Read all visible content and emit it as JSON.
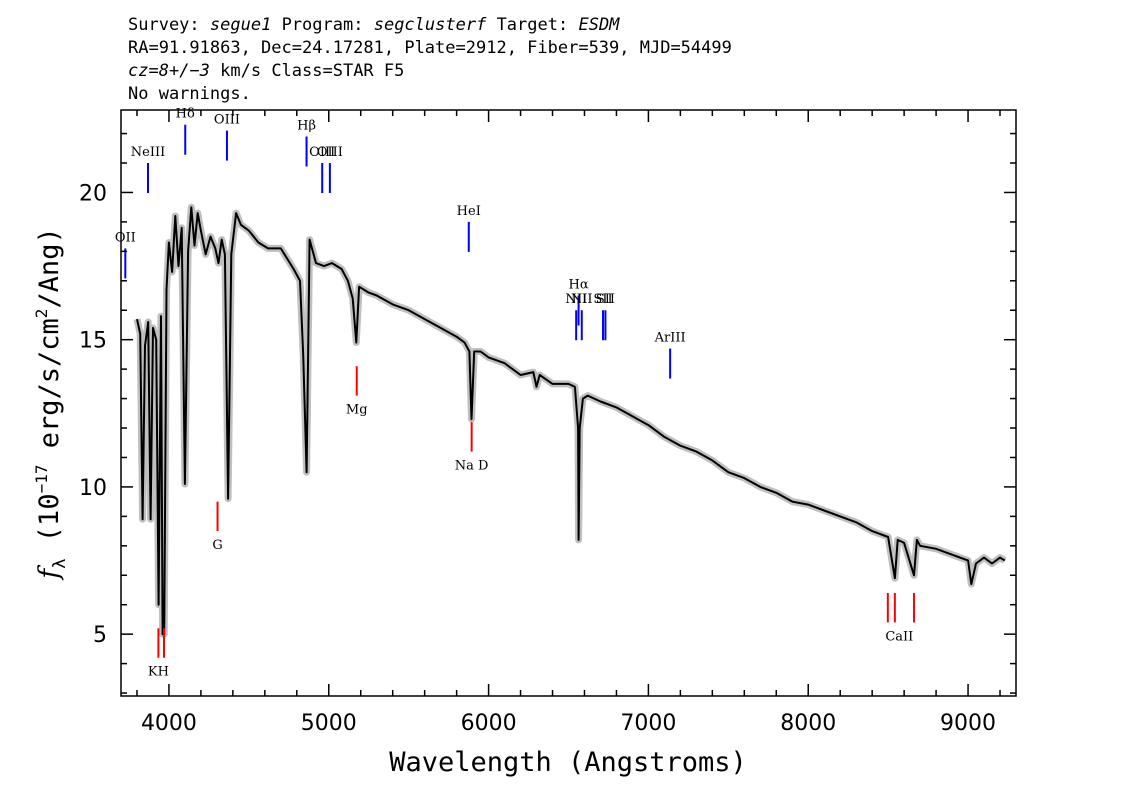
{
  "header": {
    "survey_label": "Survey:",
    "survey": "segue1",
    "program_label": "Program:",
    "program": "segclusterf",
    "target_label": "Target:",
    "target": "ESDM",
    "line2": "RA=91.91863, Dec=24.17281, Plate=2912, Fiber=539, MJD=54499",
    "cz_label": "cz",
    "cz_value": "=8+/−3",
    "line3_rest": " km/s Class=STAR F5",
    "line4": "No warnings."
  },
  "chart_data": {
    "type": "line",
    "xlabel": "Wavelength (Angstroms)",
    "ylabel": "f_λ (10^-17 erg/s/cm^2/Ang)",
    "ylabel_parts": {
      "f": "f",
      "sub": "λ",
      "pre": " (10",
      "exp": "−17",
      "mid": " erg/s/cm",
      "exp2": "2",
      "post": "/Ang)"
    },
    "xlim": [
      3700,
      9300
    ],
    "ylim": [
      2.9,
      22.8
    ],
    "xticks": [
      4000,
      5000,
      6000,
      7000,
      8000,
      9000
    ],
    "yticks": [
      5,
      10,
      15,
      20
    ],
    "series": [
      {
        "x": [
          3800,
          3820,
          3835,
          3850,
          3870,
          3885,
          3900,
          3920,
          3935,
          3950,
          3960,
          3970,
          3985,
          4000,
          4020,
          4040,
          4060,
          4080,
          4100,
          4120,
          4140,
          4160,
          4180,
          4200,
          4230,
          4260,
          4290,
          4310,
          4330,
          4350,
          4370,
          4390,
          4420,
          4450,
          4500,
          4560,
          4620,
          4700,
          4780,
          4820,
          4840,
          4861,
          4880,
          4920,
          4970,
          5020,
          5080,
          5120,
          5150,
          5172,
          5190,
          5250,
          5300,
          5400,
          5500,
          5600,
          5700,
          5800,
          5850,
          5880,
          5893,
          5910,
          5950,
          6000,
          6100,
          6200,
          6280,
          6300,
          6320,
          6400,
          6500,
          6540,
          6560,
          6563,
          6570,
          6590,
          6620,
          6700,
          6800,
          6900,
          7000,
          7100,
          7200,
          7300,
          7400,
          7500,
          7600,
          7700,
          7800,
          7900,
          8000,
          8100,
          8200,
          8300,
          8400,
          8500,
          8542,
          8560,
          8600,
          8662,
          8680,
          8700,
          8800,
          8900,
          9000,
          9020,
          9050,
          9100,
          9150,
          9200,
          9230
        ],
        "y": [
          15.7,
          15.2,
          8.9,
          14.8,
          15.6,
          8.9,
          15.4,
          15.0,
          6.0,
          15.8,
          5.0,
          5.0,
          16.7,
          18.3,
          17.3,
          19.2,
          17.5,
          18.8,
          10.1,
          18.0,
          19.5,
          18.2,
          19.3,
          18.7,
          17.9,
          18.5,
          18.1,
          17.6,
          18.4,
          17.9,
          9.6,
          17.9,
          19.3,
          18.9,
          18.7,
          18.3,
          18.1,
          18.1,
          17.4,
          17.0,
          14.5,
          10.5,
          18.4,
          17.6,
          17.5,
          17.6,
          17.4,
          17.0,
          16.4,
          14.9,
          16.8,
          16.6,
          16.5,
          16.2,
          16.0,
          15.7,
          15.4,
          15.1,
          14.9,
          14.6,
          12.3,
          14.6,
          14.6,
          14.4,
          14.2,
          13.8,
          13.9,
          13.4,
          13.8,
          13.5,
          13.5,
          13.4,
          12.0,
          8.2,
          12.0,
          13.0,
          13.1,
          12.9,
          12.7,
          12.4,
          12.1,
          11.7,
          11.4,
          11.2,
          10.9,
          10.5,
          10.3,
          10.0,
          9.8,
          9.5,
          9.4,
          9.2,
          9.0,
          8.8,
          8.5,
          8.3,
          6.9,
          8.2,
          8.1,
          7.0,
          8.2,
          8.0,
          7.9,
          7.7,
          7.5,
          6.7,
          7.4,
          7.6,
          7.4,
          7.6,
          7.5
        ]
      }
    ],
    "emission_lines": [
      {
        "label": "OII",
        "x": 3727,
        "y_top": 18.1
      },
      {
        "label": "NeIII",
        "x": 3869,
        "y_top": 21.0
      },
      {
        "label": "Hδ",
        "x": 4102,
        "y_top": 22.3
      },
      {
        "label": "OIII",
        "x": 4363,
        "y_top": 22.1
      },
      {
        "label": "Hβ",
        "x": 4861,
        "y_top": 21.9
      },
      {
        "label": "OIII",
        "x": 4959,
        "y_top": 21.0
      },
      {
        "label": "OIII",
        "x": 5007,
        "y_top": 21.0
      },
      {
        "label": "HeI",
        "x": 5876,
        "y_top": 19.0
      },
      {
        "label": "Hα",
        "x": 6563,
        "y_top": 16.5
      },
      {
        "label": "NII",
        "x": 6548,
        "y_top": 16.0
      },
      {
        "label": "NII",
        "x": 6583,
        "y_top": 16.0
      },
      {
        "label": "SII",
        "x": 6716,
        "y_top": 16.0
      },
      {
        "label": "SII",
        "x": 6731,
        "y_top": 16.0
      },
      {
        "label": "ArIII",
        "x": 7136,
        "y_top": 14.7
      }
    ],
    "absorption_lines": [
      {
        "label": "K",
        "x": 3934
      },
      {
        "label": "H",
        "x": 3969
      },
      {
        "label": "G",
        "x": 4304
      },
      {
        "label": "Mg",
        "x": 5175
      },
      {
        "label": "Na D",
        "x": 5894
      },
      {
        "label": "CaII",
        "x": 8498
      },
      {
        "label": "CaII",
        "x": 8542
      },
      {
        "label": "CaII",
        "x": 8662
      }
    ],
    "colors": {
      "spectrum": "#000000",
      "error": "#bfbfbf",
      "emission": "#0000ff",
      "absorption": "#ff0000"
    }
  }
}
